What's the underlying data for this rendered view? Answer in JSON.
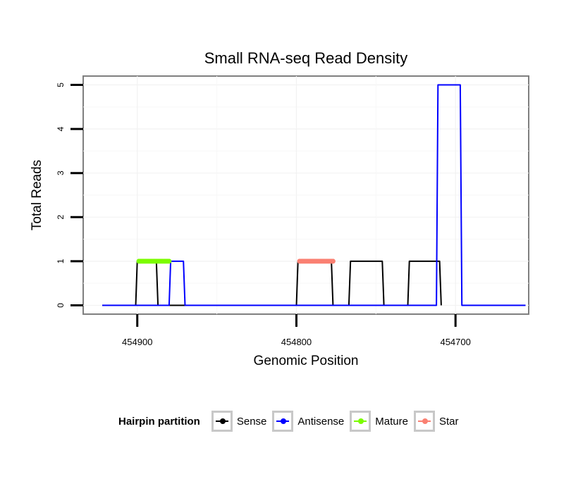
{
  "chart_data": {
    "type": "line",
    "title": "Small RNA-seq Read Density",
    "xlabel": "Genomic Position",
    "ylabel": "Total Reads",
    "x_reversed": true,
    "xlim": [
      454934,
      454654
    ],
    "ylim": [
      -0.2,
      5.2
    ],
    "x_ticks": [
      454900,
      454800,
      454700
    ],
    "x_tick_labels": [
      "454900",
      "454800",
      "454700"
    ],
    "y_ticks": [
      0,
      1,
      2,
      3,
      4,
      5
    ],
    "y_tick_labels": [
      "0",
      "1",
      "2",
      "3",
      "4",
      "5"
    ],
    "legend": {
      "title": "Hairpin partition",
      "position": "bottom",
      "entries": [
        "Sense",
        "Antisense",
        "Mature",
        "Star"
      ]
    },
    "series": [
      {
        "name": "Sense",
        "color": "#000000",
        "mode": "line",
        "x": [
          454922,
          454901,
          454900,
          454888,
          454887,
          454800,
          454799,
          454778,
          454777,
          454767,
          454766,
          454746,
          454745,
          454730,
          454729,
          454710,
          454709
        ],
        "y": [
          0,
          0,
          1,
          1,
          0,
          0,
          1,
          1,
          0,
          0,
          1,
          1,
          0,
          0,
          1,
          1,
          0
        ]
      },
      {
        "name": "Antisense",
        "color": "#0000ff",
        "mode": "line",
        "x": [
          454922,
          454880,
          454879,
          454871,
          454870,
          454746,
          454745,
          454712,
          454711,
          454697,
          454696,
          454680,
          454679,
          454673,
          454672,
          454656
        ],
        "y": [
          0,
          0,
          1,
          1,
          0,
          0,
          0,
          0,
          5,
          5,
          0,
          0,
          0,
          0,
          0,
          0
        ]
      },
      {
        "name": "Mature",
        "color": "#7cfc00",
        "mode": "points",
        "x": [
          454899,
          454898,
          454897,
          454896,
          454895,
          454894,
          454893,
          454892,
          454891,
          454890,
          454889,
          454888,
          454887,
          454886,
          454885,
          454884,
          454883,
          454882,
          454881,
          454880
        ],
        "y": [
          1,
          1,
          1,
          1,
          1,
          1,
          1,
          1,
          1,
          1,
          1,
          1,
          1,
          1,
          1,
          1,
          1,
          1,
          1,
          1
        ]
      },
      {
        "name": "Star",
        "color": "#fa8072",
        "mode": "points",
        "x": [
          454798,
          454797,
          454796,
          454795,
          454794,
          454793,
          454792,
          454791,
          454790,
          454789,
          454788,
          454787,
          454786,
          454785,
          454784,
          454783,
          454782,
          454781,
          454780,
          454779,
          454778,
          454777
        ],
        "y": [
          1,
          1,
          1,
          1,
          1,
          1,
          1,
          1,
          1,
          1,
          1,
          1,
          1,
          1,
          1,
          1,
          1,
          1,
          1,
          1,
          1,
          1
        ]
      }
    ]
  }
}
